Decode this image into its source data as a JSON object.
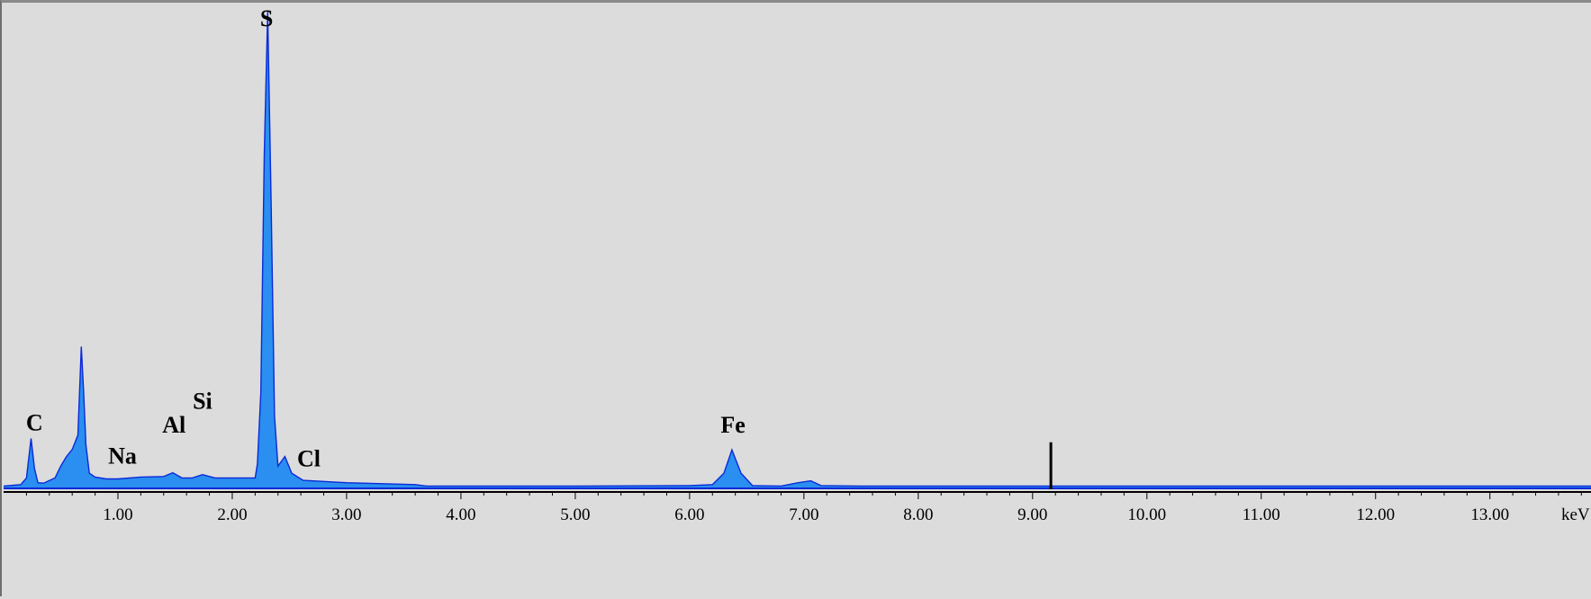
{
  "chart_data": {
    "type": "area",
    "xlabel": "keV",
    "ylabel": "",
    "xlim": [
      0.0,
      13.9
    ],
    "ylim": [
      0,
      100
    ],
    "grid": false,
    "colors": {
      "fill": "#2a8ff0",
      "outline": "#0a2ad8",
      "background": "#dcdcdc"
    },
    "x_ticks": [
      {
        "value": 1,
        "label": "1.00"
      },
      {
        "value": 2,
        "label": "2.00"
      },
      {
        "value": 3,
        "label": "3.00"
      },
      {
        "value": 4,
        "label": "4.00"
      },
      {
        "value": 5,
        "label": "5.00"
      },
      {
        "value": 6,
        "label": "6.00"
      },
      {
        "value": 7,
        "label": "7.00"
      },
      {
        "value": 8,
        "label": "8.00"
      },
      {
        "value": 9,
        "label": "9.00"
      },
      {
        "value": 10,
        "label": "10.00"
      },
      {
        "value": 11,
        "label": "11.00"
      },
      {
        "value": 12,
        "label": "12.00"
      },
      {
        "value": 13,
        "label": "13.00"
      }
    ],
    "series": [
      {
        "x": [
          0.0,
          0.15,
          0.2,
          0.24,
          0.27,
          0.3,
          0.35,
          0.45,
          0.5,
          0.55,
          0.6,
          0.65,
          0.68,
          0.7,
          0.72,
          0.75,
          0.8,
          0.9,
          1.0,
          1.2,
          1.4,
          1.48,
          1.56,
          1.65,
          1.74,
          1.85,
          2.0,
          2.2,
          2.22,
          2.25,
          2.28,
          2.31,
          2.34,
          2.37,
          2.4,
          2.46,
          2.52,
          2.62,
          3.0,
          3.6,
          3.7,
          4.5,
          5.0,
          6.0,
          6.2,
          6.3,
          6.37,
          6.45,
          6.55,
          6.8,
          6.95,
          7.06,
          7.15,
          7.5,
          8.0,
          9.0,
          10.0,
          11.0,
          12.0,
          13.0,
          13.9
        ],
        "y": [
          0.3,
          0.6,
          2.0,
          10.3,
          4.0,
          1.0,
          0.9,
          2.0,
          4.5,
          6.5,
          8.0,
          11.0,
          29.6,
          20.0,
          9.0,
          3.0,
          2.2,
          1.8,
          1.8,
          2.2,
          2.3,
          3.1,
          2.0,
          2.0,
          2.7,
          2.0,
          2.0,
          2.0,
          5.0,
          20.0,
          70.0,
          100.0,
          60.0,
          15.0,
          4.5,
          6.5,
          3.0,
          1.5,
          1.0,
          0.6,
          0.3,
          0.3,
          0.3,
          0.4,
          0.6,
          3.0,
          7.9,
          3.0,
          0.4,
          0.3,
          1.0,
          1.4,
          0.4,
          0.3,
          0.3,
          0.3,
          0.3,
          0.3,
          0.3,
          0.3,
          0.3
        ]
      }
    ],
    "peak_labels": [
      {
        "text": "C",
        "x": 0.27,
        "y": 12.0
      },
      {
        "text": "Na",
        "x": 1.04,
        "y": 5.0
      },
      {
        "text": "Al",
        "x": 1.49,
        "y": 11.5
      },
      {
        "text": "Si",
        "x": 1.74,
        "y": 16.5
      },
      {
        "text": "S",
        "x": 2.3,
        "y": 97.0
      },
      {
        "text": "Cl",
        "x": 2.67,
        "y": 4.4
      },
      {
        "text": "Fe",
        "x": 6.38,
        "y": 11.5
      }
    ],
    "marker": {
      "x": 9.16,
      "y": 9.5
    }
  }
}
